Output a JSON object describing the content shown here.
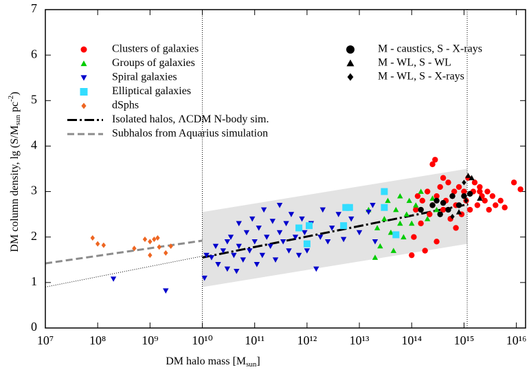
{
  "chart_data": {
    "type": "scatter",
    "log_x": true,
    "xlabel": [
      "DM halo mass [M",
      "sun",
      "]"
    ],
    "ylabel": [
      "DM column density, lg (S/M",
      "sun",
      " pc",
      "-2",
      ")"
    ],
    "xlim": [
      10000000.0,
      1.5e+16
    ],
    "ylim": [
      0,
      7
    ],
    "xticks": [
      {
        "value": 10000000.0,
        "label": "10⁷"
      },
      {
        "value": 100000000.0,
        "label": "10⁸"
      },
      {
        "value": 1000000000.0,
        "label": "10⁹"
      },
      {
        "value": 10000000000.0,
        "label": "10¹⁰"
      },
      {
        "value": 100000000000.0,
        "label": "10¹¹"
      },
      {
        "value": 1000000000000.0,
        "label": "10¹²"
      },
      {
        "value": 10000000000000.0,
        "label": "10¹³"
      },
      {
        "value": 100000000000000.0,
        "label": "10¹⁴"
      },
      {
        "value": 1000000000000000.0,
        "label": "10¹⁵"
      },
      {
        "value": 1e+16,
        "label": "10¹⁶"
      }
    ],
    "yticks": [
      0,
      1,
      2,
      3,
      4,
      5,
      6,
      7
    ],
    "vlines": [
      10000000000.0,
      1150000000000000.0
    ],
    "band": {
      "color": "#e3e3e3",
      "x": [
        10000000000.0,
        1150000000000000.0
      ],
      "lower": [
        0.9,
        1.85
      ],
      "upper": [
        2.55,
        3.5
      ]
    },
    "lines": [
      {
        "name": "Isolated halos, ΛCDM N-body sim.",
        "color": "#000000",
        "dash": "14 4 3 4",
        "x": [
          10000000000.0,
          1200000000000000.0
        ],
        "values": [
          1.55,
          2.72
        ]
      },
      {
        "name": "Subhalos from Aquarius simulation",
        "color": "#8c8c8c",
        "dash": "10 5",
        "x": [
          10000000.0,
          10000000000.0
        ],
        "values": [
          1.42,
          1.92
        ]
      },
      {
        "color": "#000000",
        "dash": "1 2",
        "x": [
          10000000.0,
          10000000000.0
        ],
        "values": [
          0.9,
          1.58
        ]
      }
    ],
    "series": [
      {
        "name": "Clusters of galaxies",
        "color": "#ff0000",
        "marker": "circle",
        "x": [
          100000000000000.0,
          110000000000000.0,
          120000000000000.0,
          130000000000000.0,
          150000000000000.0,
          160000000000000.0,
          180000000000000.0,
          200000000000000.0,
          220000000000000.0,
          250000000000000.0,
          250000000000000.0,
          280000000000000.0,
          300000000000000.0,
          300000000000000.0,
          350000000000000.0,
          400000000000000.0,
          450000000000000.0,
          500000000000000.0,
          550000000000000.0,
          600000000000000.0,
          650000000000000.0,
          700000000000000.0,
          800000000000000.0,
          900000000000000.0,
          1000000000000000.0,
          1100000000000000.0,
          1200000000000000.0,
          1300000000000000.0,
          1500000000000000.0,
          1600000000000000.0,
          1800000000000000.0,
          2000000000000000.0,
          2200000000000000.0,
          2500000000000000.0,
          2800000000000000.0,
          3000000000000000.0,
          3500000000000000.0,
          4000000000000000.0,
          5000000000000000.0,
          6000000000000000.0,
          9000000000000000.0,
          1.2e+16,
          2000000000000000.0,
          700000000000000.0,
          400000000000000.0
        ],
        "values": [
          1.6,
          2.0,
          2.6,
          2.9,
          2.3,
          2.8,
          1.7,
          3.0,
          2.5,
          2.7,
          3.6,
          3.7,
          2.9,
          1.9,
          3.1,
          2.6,
          2.8,
          3.2,
          2.4,
          2.9,
          3.0,
          2.7,
          3.1,
          2.5,
          3.0,
          2.8,
          3.3,
          2.6,
          3.0,
          3.2,
          2.7,
          3.1,
          2.9,
          2.8,
          3.0,
          2.6,
          2.9,
          2.7,
          2.8,
          2.65,
          3.2,
          3.05,
          3.0,
          2.2,
          3.3
        ]
      },
      {
        "name": "Groups of galaxies",
        "color": "#00cc00",
        "marker": "triangle",
        "x": [
          15000000000000.0,
          20000000000000.0,
          22000000000000.0,
          25000000000000.0,
          30000000000000.0,
          35000000000000.0,
          40000000000000.0,
          45000000000000.0,
          50000000000000.0,
          60000000000000.0,
          60000000000000.0,
          70000000000000.0,
          80000000000000.0,
          90000000000000.0,
          100000000000000.0,
          120000000000000.0,
          150000000000000.0,
          200000000000000.0,
          250000000000000.0,
          300000000000000.0
        ],
        "values": [
          2.6,
          1.55,
          2.2,
          1.8,
          2.4,
          2.8,
          2.1,
          1.7,
          2.6,
          2.3,
          2.9,
          2.0,
          2.5,
          2.8,
          2.3,
          2.7,
          3.0,
          2.4,
          2.85,
          2.6
        ]
      },
      {
        "name": "Spiral galaxies",
        "color": "#0000cc",
        "marker": "triangle-down",
        "x": [
          200000000.0,
          2000000000.0,
          11000000000.0,
          12000000000.0,
          15000000000.0,
          18000000000.0,
          20000000000.0,
          25000000000.0,
          30000000000.0,
          30000000000.0,
          35000000000.0,
          40000000000.0,
          45000000000.0,
          50000000000.0,
          50000000000.0,
          60000000000.0,
          70000000000.0,
          80000000000.0,
          90000000000.0,
          100000000000.0,
          110000000000.0,
          120000000000.0,
          140000000000.0,
          150000000000.0,
          170000000000.0,
          200000000000.0,
          220000000000.0,
          250000000000.0,
          300000000000.0,
          300000000000.0,
          350000000000.0,
          400000000000.0,
          450000000000.0,
          500000000000.0,
          600000000000.0,
          700000000000.0,
          800000000000.0,
          900000000000.0,
          1000000000000.0,
          1200000000000.0,
          1500000000000.0,
          1800000000000.0,
          2000000000000.0,
          2500000000000.0,
          3000000000000.0,
          4000000000000.0,
          5000000000000.0,
          7000000000000.0,
          10000000000000.0,
          15000000000000.0,
          18000000000000.0,
          20000000000000.0
        ],
        "values": [
          1.08,
          0.82,
          1.1,
          1.6,
          1.55,
          1.8,
          1.4,
          1.7,
          1.9,
          1.3,
          2.0,
          1.6,
          1.25,
          2.3,
          1.8,
          1.5,
          2.1,
          1.7,
          2.4,
          1.9,
          1.4,
          2.2,
          1.6,
          2.6,
          2.0,
          1.8,
          2.35,
          1.5,
          2.1,
          2.7,
          1.9,
          2.3,
          1.7,
          2.5,
          2.0,
          1.6,
          2.4,
          2.1,
          1.7,
          2.3,
          1.3,
          2.0,
          2.6,
          1.9,
          2.2,
          2.5,
          1.95,
          2.4,
          2.1,
          2.55,
          2.7,
          1.9
        ]
      },
      {
        "name": "Elliptical galaxies",
        "color": "#33ddff",
        "marker": "square",
        "x": [
          700000000000.0,
          1000000000000.0,
          1100000000000.0,
          5000000000000.0,
          5500000000000.0,
          6500000000000.0,
          30000000000000.0,
          30000000000000.0,
          50000000000000.0
        ],
        "values": [
          2.2,
          1.85,
          2.25,
          2.25,
          2.65,
          2.65,
          2.65,
          3.0,
          2.05
        ]
      },
      {
        "name": "dSphs",
        "color": "#ee6622",
        "marker": "diamond",
        "x": [
          80000000.0,
          100000000.0,
          130000000.0,
          500000000.0,
          800000000.0,
          1000000000.0,
          1000000000.0,
          1200000000.0,
          1400000000.0,
          1500000000.0,
          2000000000.0,
          2500000000.0
        ],
        "values": [
          1.98,
          1.85,
          1.82,
          1.75,
          1.95,
          1.6,
          1.9,
          1.95,
          1.98,
          1.78,
          1.65,
          1.8
        ]
      },
      {
        "name": "M - caustics, S - X-rays",
        "color": "#000000",
        "marker": "circle",
        "x": [
          150000000000000.0,
          250000000000000.0,
          300000000000000.0,
          350000000000000.0,
          400000000000000.0,
          500000000000000.0,
          600000000000000.0,
          800000000000000.0,
          1000000000000000.0,
          1300000000000000.0
        ],
        "values": [
          2.6,
          2.7,
          2.8,
          2.5,
          2.75,
          2.6,
          2.9,
          2.7,
          2.9,
          2.95
        ]
      },
      {
        "name": "M - WL, S - WL",
        "color": "#000000",
        "marker": "triangle",
        "x": [
          1200000000000000.0,
          1400000000000000.0,
          2000000000000000.0,
          800000000000000.0
        ],
        "values": [
          3.35,
          3.3,
          2.85,
          2.55
        ]
      },
      {
        "name": "M - WL, S - X-rays",
        "color": "#000000",
        "marker": "diamond",
        "x": [
          1000000000000000.0,
          1100000000000000.0,
          600000000000000.0
        ],
        "values": [
          3.2,
          2.8,
          2.45
        ]
      }
    ]
  }
}
